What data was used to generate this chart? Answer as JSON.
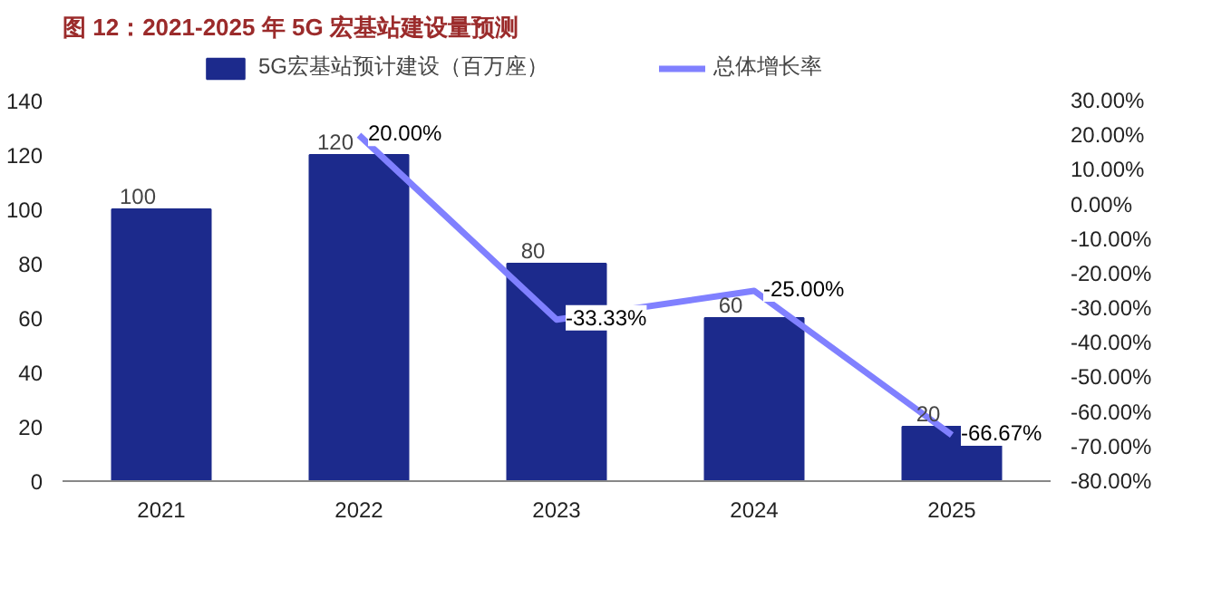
{
  "chart_data": {
    "type": "bar",
    "title": "图 12：2021-2025 年 5G 宏基站建设量预测",
    "categories": [
      "2021",
      "2022",
      "2023",
      "2024",
      "2025"
    ],
    "series": [
      {
        "name": "5G宏基站预计建设（百万座）",
        "color": "#1c2a8c",
        "values": [
          100,
          120,
          80,
          60,
          20
        ]
      },
      {
        "name": "总体增长率",
        "type": "line",
        "axis": "y2",
        "color": "#8080ff",
        "values": [
          null,
          20.0,
          -33.33,
          -25.0,
          -66.67
        ],
        "value_labels": [
          null,
          "20.00%",
          "-33.33%",
          "-25.00%",
          "-66.67%"
        ]
      }
    ],
    "data_labels": true,
    "ylim": [
      0,
      140
    ],
    "yticks": [
      0,
      20,
      40,
      60,
      80,
      100,
      120,
      140
    ],
    "y2lim": [
      -80,
      30
    ],
    "y2ticks": [
      {
        "value": 30,
        "label": "30.00%"
      },
      {
        "value": 20,
        "label": "20.00%"
      },
      {
        "value": 10,
        "label": "10.00%"
      },
      {
        "value": 0,
        "label": "0.00%"
      },
      {
        "value": -10,
        "label": "-10.00%"
      },
      {
        "value": -20,
        "label": "-20.00%"
      },
      {
        "value": -30,
        "label": "-30.00%"
      },
      {
        "value": -40,
        "label": "-40.00%"
      },
      {
        "value": -50,
        "label": "-50.00%"
      },
      {
        "value": -60,
        "label": "-60.00%"
      },
      {
        "value": -70,
        "label": "-70.00%"
      },
      {
        "value": -80,
        "label": "-80.00%"
      }
    ],
    "legend": "top",
    "grid": false,
    "marker": "none",
    "line_style": "solid"
  }
}
